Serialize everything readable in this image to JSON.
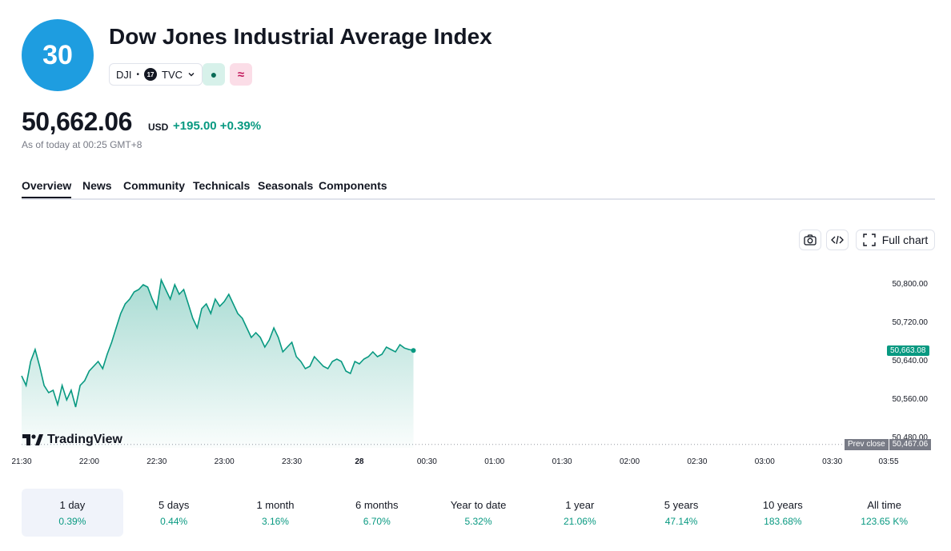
{
  "header": {
    "badge": "30",
    "title": "Dow Jones Industrial Average Index",
    "symbol": "DJI",
    "exchange": "TVC",
    "exchange_logo": "17",
    "status_icon": "●",
    "status2_icon": "≈"
  },
  "quote": {
    "price": "50,662.06",
    "currency": "USD",
    "change": "+195.00 +0.39%",
    "as_of": "As of today at 00:25 GMT+8"
  },
  "tabs": [
    "Overview",
    "News",
    "Community",
    "Technicals",
    "Seasonals",
    "Components"
  ],
  "toolbar": {
    "full_chart": "Full chart"
  },
  "chart": {
    "brand": "TradingView",
    "last_price_label": "50,663.08",
    "prev_close_label": "Prev close",
    "prev_close_value": "50,467.06",
    "accent_color": "#089981"
  },
  "chart_data": {
    "type": "area",
    "title": "",
    "x_ticks": [
      "21:30",
      "22:00",
      "22:30",
      "23:00",
      "23:30",
      "28",
      "00:30",
      "01:00",
      "01:30",
      "02:00",
      "02:30",
      "03:00",
      "03:30",
      "03:55"
    ],
    "y_ticks": [
      "50,800.00",
      "50,720.00",
      "50,640.00",
      "50,560.00",
      "50,480.00"
    ],
    "ylim": [
      50467,
      50840
    ],
    "x_unit": "minutes after 21:30",
    "x": [
      0,
      2,
      4,
      6,
      8,
      10,
      12,
      14,
      16,
      18,
      20,
      22,
      24,
      26,
      28,
      30,
      32,
      34,
      36,
      38,
      40,
      42,
      44,
      46,
      48,
      50,
      52,
      54,
      56,
      58,
      60,
      62,
      64,
      66,
      68,
      70,
      72,
      74,
      76,
      78,
      80,
      82,
      84,
      86,
      88,
      90,
      92,
      94,
      96,
      98,
      100,
      102,
      104,
      106,
      108,
      110,
      112,
      114,
      116,
      118,
      120,
      122,
      124,
      126,
      128,
      130,
      132,
      134,
      136,
      138,
      140,
      142,
      144,
      146,
      148,
      150,
      152,
      154,
      156,
      158,
      160,
      162,
      164,
      166,
      168,
      170,
      172,
      174
    ],
    "values": [
      50610,
      50590,
      50640,
      50665,
      50630,
      50590,
      50575,
      50580,
      50550,
      50590,
      50560,
      50580,
      50545,
      50590,
      50600,
      50620,
      50630,
      50640,
      50625,
      50655,
      50680,
      50710,
      50740,
      50760,
      50770,
      50785,
      50790,
      50800,
      50795,
      50770,
      50750,
      50810,
      50790,
      50770,
      50800,
      50780,
      50790,
      50760,
      50730,
      50710,
      50750,
      50760,
      50740,
      50770,
      50755,
      50765,
      50780,
      50760,
      50740,
      50730,
      50710,
      50690,
      50700,
      50690,
      50670,
      50685,
      50710,
      50690,
      50660,
      50670,
      50680,
      50650,
      50640,
      50625,
      50630,
      50650,
      50640,
      50630,
      50625,
      50640,
      50645,
      50640,
      50620,
      50615,
      50640,
      50635,
      50645,
      50650,
      50660,
      50650,
      50655,
      50670,
      50665,
      50660,
      50675,
      50668,
      50665,
      50663
    ]
  },
  "periods": [
    {
      "label": "1 day",
      "value": "0.39%"
    },
    {
      "label": "5 days",
      "value": "0.44%"
    },
    {
      "label": "1 month",
      "value": "3.16%"
    },
    {
      "label": "6 months",
      "value": "6.70%"
    },
    {
      "label": "Year to date",
      "value": "5.32%"
    },
    {
      "label": "1 year",
      "value": "21.06%"
    },
    {
      "label": "5 years",
      "value": "47.14%"
    },
    {
      "label": "10 years",
      "value": "183.68%"
    },
    {
      "label": "All time",
      "value": "123.65 K%"
    }
  ]
}
